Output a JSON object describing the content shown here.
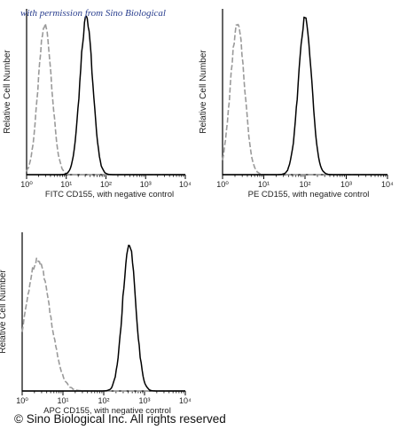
{
  "watermark": "with permission from Sino Biological",
  "copyright": "© Sino Biological Inc. All rights reserved",
  "style": {
    "control_color": "#9a9a9a",
    "sample_color": "#000000",
    "axis_color": "#000000"
  },
  "chart_data": [
    {
      "type": "line",
      "xscale": "log",
      "xlim": [
        1,
        10000
      ],
      "xticks": [
        "10⁰",
        "10¹",
        "10²",
        "10³",
        "10⁴"
      ],
      "ylabel": "Relative Cell Number",
      "xlabel": "FITC  CD155,  with negative control",
      "series": [
        {
          "role": "negative-control",
          "style": "dashed",
          "color": "#9a9a9a",
          "peak_x": 2.9,
          "peak_height": 0.93,
          "width_decades": 0.17
        },
        {
          "role": "sample",
          "style": "solid",
          "color": "#000000",
          "peak_x": 32,
          "peak_height": 0.97,
          "width_decades": 0.16
        }
      ]
    },
    {
      "type": "line",
      "xscale": "log",
      "xlim": [
        1,
        10000
      ],
      "xticks": [
        "10⁰",
        "10¹",
        "10²",
        "10³",
        "10⁴"
      ],
      "ylabel": "Relative Cell Number",
      "xlabel": "PE  CD155,  with negative control",
      "series": [
        {
          "role": "negative-control",
          "style": "dashed",
          "color": "#9a9a9a",
          "peak_x": 2.3,
          "peak_height": 0.93,
          "width_decades": 0.17
        },
        {
          "role": "sample",
          "style": "solid",
          "color": "#000000",
          "peak_x": 100,
          "peak_height": 0.97,
          "width_decades": 0.16
        }
      ]
    },
    {
      "type": "line",
      "xscale": "log",
      "xlim": [
        1,
        10000
      ],
      "xticks": [
        "10⁰",
        "10¹",
        "10²",
        "10³",
        "10⁴"
      ],
      "ylabel": "Relative Cell Number",
      "xlabel": "APC CD155, with negative control",
      "series": [
        {
          "role": "negative-control",
          "style": "dashed",
          "color": "#9a9a9a",
          "peak_x": 2.4,
          "peak_height": 0.86,
          "width_decades": 0.3
        },
        {
          "role": "sample",
          "style": "solid",
          "color": "#000000",
          "peak_x": 420,
          "peak_height": 0.95,
          "width_decades": 0.16
        }
      ]
    }
  ]
}
